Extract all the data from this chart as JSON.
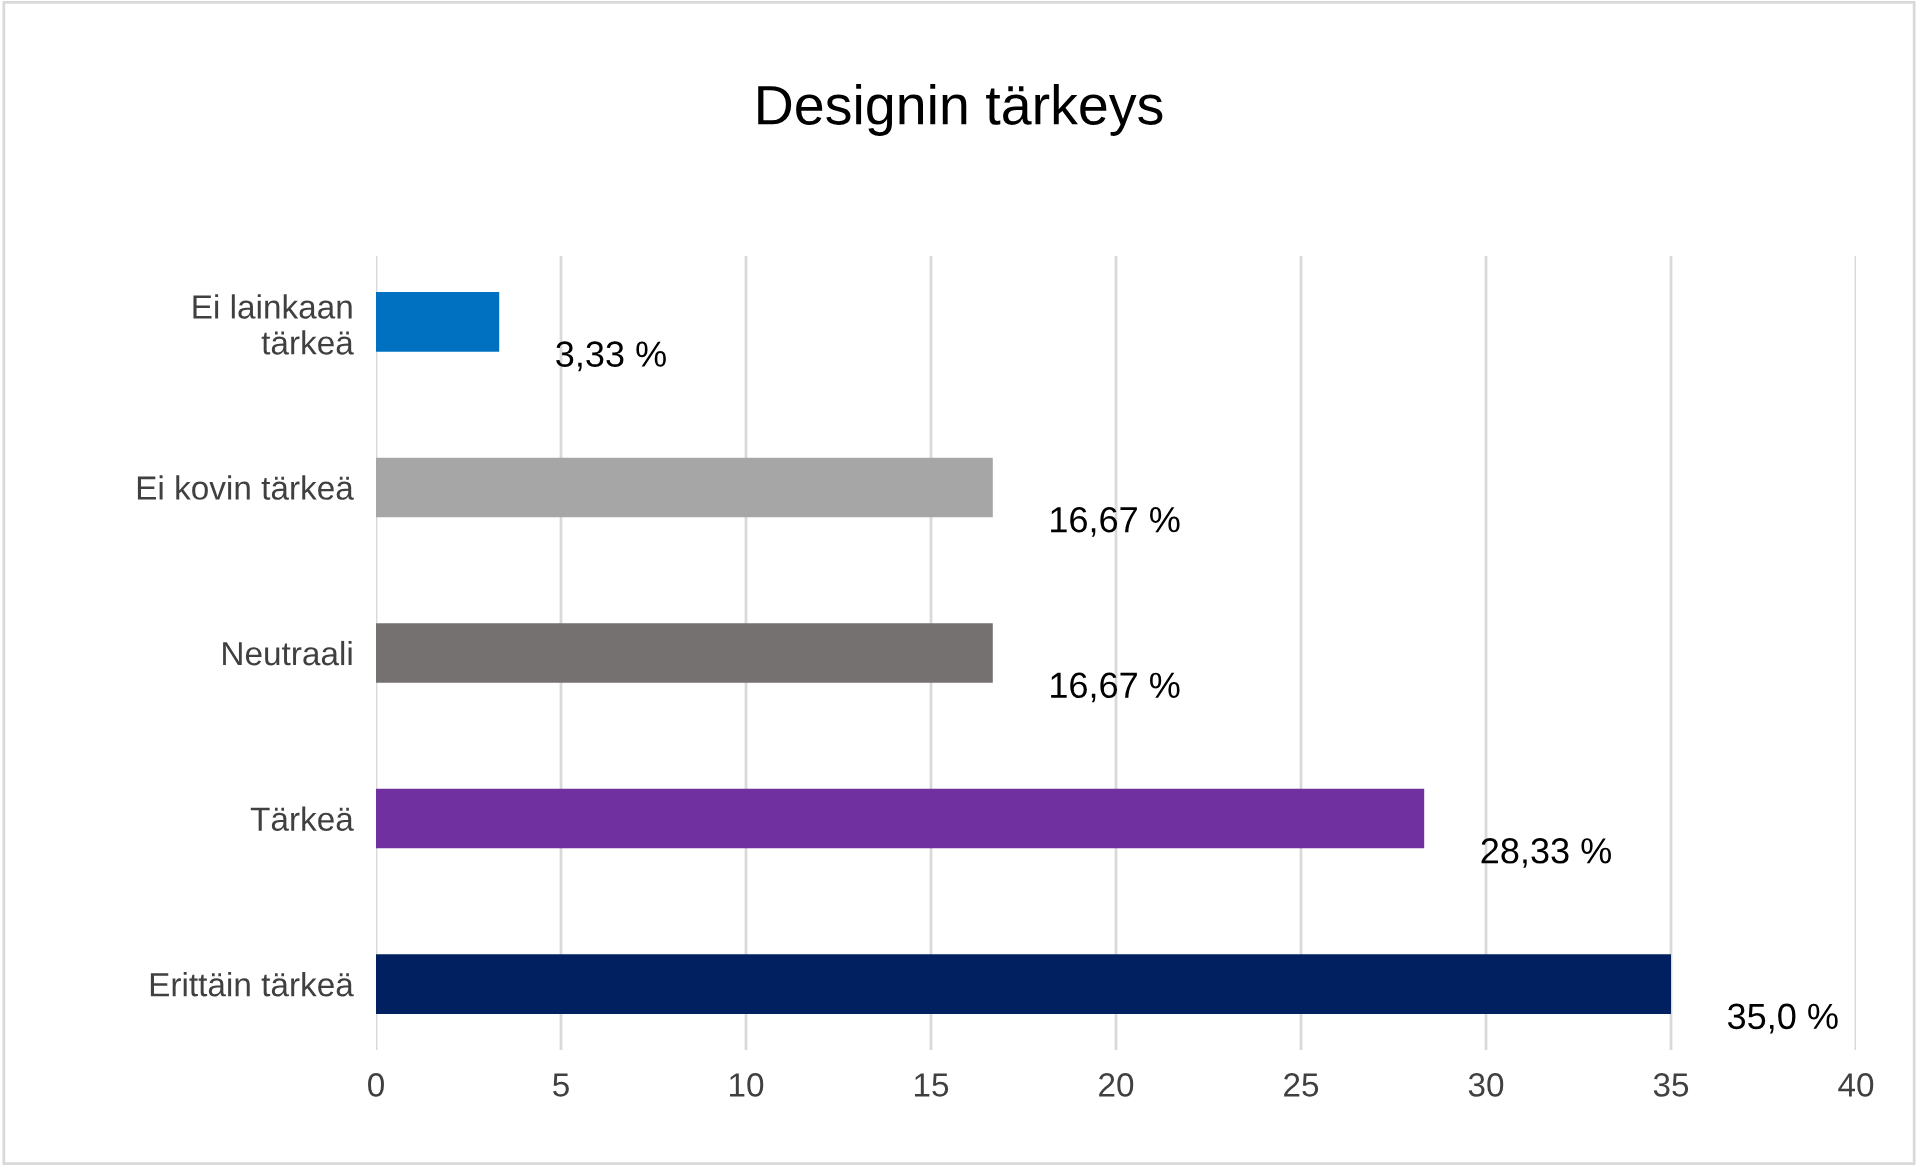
{
  "chart_data": {
    "type": "bar",
    "orientation": "horizontal",
    "title": "Designin tärkeys",
    "categories": [
      "Ei lainkaan\ntärkeä",
      "Ei kovin tärkeä",
      "Neutraali",
      "Tärkeä",
      "Erittäin tärkeä"
    ],
    "values": [
      3.33,
      16.67,
      16.67,
      28.33,
      35.0
    ],
    "colors": [
      "#0070c0",
      "#a6a6a6",
      "#767171",
      "#7030a0",
      "#002060"
    ],
    "value_labels": [
      "3,33 %",
      "16,67 %",
      "16,67 %",
      "28,33 %",
      "35,0 %"
    ],
    "xlim": [
      0,
      40
    ],
    "xticks": [
      0,
      5,
      10,
      15,
      20,
      25,
      30,
      35,
      40
    ],
    "grid": "x"
  }
}
